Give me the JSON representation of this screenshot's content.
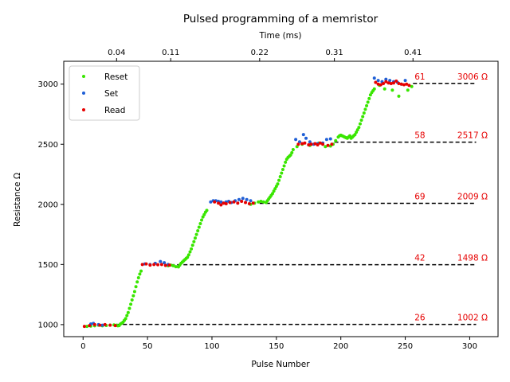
{
  "chart_data": {
    "type": "scatter",
    "title": "Pulsed programming of a memristor",
    "xlabel": "Pulse Number",
    "ylabel": "Resistance Ω",
    "x2label": "Time (ms)",
    "xlim": [
      -15,
      322
    ],
    "ylim": [
      900,
      3190
    ],
    "xticks": [
      0,
      50,
      100,
      150,
      200,
      250,
      300
    ],
    "yticks": [
      1000,
      1500,
      2000,
      2500,
      3000
    ],
    "x2ticks": [
      {
        "pulse": 26,
        "label": "0.04"
      },
      {
        "pulse": 68,
        "label": "0.11"
      },
      {
        "pulse": 137,
        "label": "0.22"
      },
      {
        "pulse": 195,
        "label": "0.31"
      },
      {
        "pulse": 256,
        "label": "0.41"
      }
    ],
    "grid": false,
    "legend_position": "top-left",
    "colors": {
      "reset": "#39e600",
      "set": "#1f5fd6",
      "read": "#e60000",
      "level_line": "#000000",
      "annotation": "#e60000"
    },
    "series": [
      {
        "name": "Reset",
        "color": "#39e600",
        "points": [
          [
            3,
            985
          ],
          [
            6,
            988
          ],
          [
            9,
            990
          ],
          [
            12,
            995
          ],
          [
            15,
            990
          ],
          [
            18,
            993
          ],
          [
            21,
            996
          ],
          [
            24,
            998
          ],
          [
            26,
            995
          ],
          [
            27,
            990
          ],
          [
            28,
            992
          ],
          [
            29,
            1005
          ],
          [
            30,
            1012
          ],
          [
            31,
            1020
          ],
          [
            32,
            1035
          ],
          [
            33,
            1050
          ],
          [
            34,
            1075
          ],
          [
            35,
            1100
          ],
          [
            36,
            1135
          ],
          [
            37,
            1170
          ],
          [
            38,
            1205
          ],
          [
            39,
            1240
          ],
          [
            40,
            1275
          ],
          [
            41,
            1315
          ],
          [
            42,
            1355
          ],
          [
            43,
            1390
          ],
          [
            44,
            1420
          ],
          [
            45,
            1445
          ],
          [
            66,
            1490
          ],
          [
            68,
            1495
          ],
          [
            70,
            1490
          ],
          [
            72,
            1482
          ],
          [
            74,
            1480
          ],
          [
            75,
            1495
          ],
          [
            76,
            1510
          ],
          [
            77,
            1520
          ],
          [
            78,
            1530
          ],
          [
            79,
            1540
          ],
          [
            80,
            1550
          ],
          [
            81,
            1560
          ],
          [
            82,
            1580
          ],
          [
            83,
            1605
          ],
          [
            84,
            1630
          ],
          [
            85,
            1660
          ],
          [
            86,
            1690
          ],
          [
            87,
            1720
          ],
          [
            88,
            1750
          ],
          [
            89,
            1780
          ],
          [
            90,
            1810
          ],
          [
            91,
            1840
          ],
          [
            92,
            1870
          ],
          [
            93,
            1895
          ],
          [
            94,
            1915
          ],
          [
            95,
            1935
          ],
          [
            96,
            1950
          ],
          [
            130,
            2000
          ],
          [
            133,
            2010
          ],
          [
            136,
            2020
          ],
          [
            138,
            2025
          ],
          [
            140,
            2020
          ],
          [
            142,
            2015
          ],
          [
            143,
            2030
          ],
          [
            144,
            2045
          ],
          [
            145,
            2060
          ],
          [
            146,
            2075
          ],
          [
            147,
            2090
          ],
          [
            148,
            2110
          ],
          [
            149,
            2130
          ],
          [
            150,
            2150
          ],
          [
            151,
            2170
          ],
          [
            152,
            2200
          ],
          [
            153,
            2230
          ],
          [
            154,
            2260
          ],
          [
            155,
            2290
          ],
          [
            156,
            2320
          ],
          [
            157,
            2350
          ],
          [
            158,
            2375
          ],
          [
            159,
            2390
          ],
          [
            160,
            2400
          ],
          [
            161,
            2410
          ],
          [
            162,
            2430
          ],
          [
            163,
            2455
          ],
          [
            166,
            2480
          ],
          [
            170,
            2500
          ],
          [
            176,
            2490
          ],
          [
            183,
            2510
          ],
          [
            188,
            2480
          ],
          [
            192,
            2485
          ],
          [
            194,
            2500
          ],
          [
            196,
            2530
          ],
          [
            198,
            2560
          ],
          [
            199,
            2570
          ],
          [
            200,
            2575
          ],
          [
            201,
            2570
          ],
          [
            202,
            2565
          ],
          [
            203,
            2560
          ],
          [
            204,
            2555
          ],
          [
            205,
            2550
          ],
          [
            206,
            2560
          ],
          [
            207,
            2570
          ],
          [
            208,
            2550
          ],
          [
            209,
            2560
          ],
          [
            210,
            2570
          ],
          [
            211,
            2580
          ],
          [
            212,
            2600
          ],
          [
            213,
            2620
          ],
          [
            214,
            2640
          ],
          [
            215,
            2670
          ],
          [
            216,
            2700
          ],
          [
            217,
            2730
          ],
          [
            218,
            2760
          ],
          [
            219,
            2790
          ],
          [
            220,
            2820
          ],
          [
            221,
            2850
          ],
          [
            222,
            2880
          ],
          [
            223,
            2910
          ],
          [
            224,
            2930
          ],
          [
            225,
            2945
          ],
          [
            226,
            2960
          ],
          [
            230,
            2990
          ],
          [
            234,
            2960
          ],
          [
            240,
            2950
          ],
          [
            245,
            2900
          ],
          [
            252,
            2950
          ],
          [
            255,
            2980
          ]
        ]
      },
      {
        "name": "Set",
        "color": "#1f5fd6",
        "points": [
          [
            6,
            1005
          ],
          [
            8,
            1010
          ],
          [
            12,
            1000
          ],
          [
            15,
            995
          ],
          [
            48,
            1505
          ],
          [
            52,
            1500
          ],
          [
            56,
            1510
          ],
          [
            60,
            1525
          ],
          [
            63,
            1515
          ],
          [
            66,
            1500
          ],
          [
            99,
            2020
          ],
          [
            101,
            2030
          ],
          [
            103,
            2030
          ],
          [
            105,
            2025
          ],
          [
            107,
            2020
          ],
          [
            109,
            2010
          ],
          [
            111,
            2020
          ],
          [
            113,
            2025
          ],
          [
            115,
            2015
          ],
          [
            118,
            2030
          ],
          [
            121,
            2040
          ],
          [
            124,
            2050
          ],
          [
            127,
            2040
          ],
          [
            130,
            2030
          ],
          [
            165,
            2540
          ],
          [
            168,
            2520
          ],
          [
            171,
            2580
          ],
          [
            173,
            2550
          ],
          [
            176,
            2520
          ],
          [
            179,
            2500
          ],
          [
            182,
            2505
          ],
          [
            186,
            2510
          ],
          [
            189,
            2540
          ],
          [
            192,
            2545
          ],
          [
            226,
            3050
          ],
          [
            229,
            3030
          ],
          [
            232,
            3020
          ],
          [
            235,
            3040
          ],
          [
            238,
            3030
          ],
          [
            241,
            3020
          ],
          [
            244,
            3015
          ],
          [
            247,
            3000
          ],
          [
            250,
            3030
          ]
        ]
      },
      {
        "name": "Read",
        "color": "#e60000",
        "points": [
          [
            1,
            985
          ],
          [
            5,
            992
          ],
          [
            9,
            1000
          ],
          [
            13,
            995
          ],
          [
            17,
            1000
          ],
          [
            21,
            995
          ],
          [
            25,
            992
          ],
          [
            46,
            1500
          ],
          [
            49,
            1505
          ],
          [
            52,
            1495
          ],
          [
            55,
            1500
          ],
          [
            58,
            1498
          ],
          [
            61,
            1500
          ],
          [
            64,
            1492
          ],
          [
            67,
            1495
          ],
          [
            102,
            2020
          ],
          [
            105,
            2010
          ],
          [
            107,
            1995
          ],
          [
            109,
            2010
          ],
          [
            111,
            2005
          ],
          [
            114,
            2015
          ],
          [
            117,
            2020
          ],
          [
            120,
            2010
          ],
          [
            123,
            2025
          ],
          [
            126,
            2015
          ],
          [
            129,
            2005
          ],
          [
            132,
            2010
          ],
          [
            167,
            2500
          ],
          [
            170,
            2505
          ],
          [
            172,
            2510
          ],
          [
            175,
            2495
          ],
          [
            177,
            2500
          ],
          [
            180,
            2505
          ],
          [
            182,
            2495
          ],
          [
            184,
            2510
          ],
          [
            186,
            2500
          ],
          [
            190,
            2490
          ],
          [
            193,
            2500
          ],
          [
            227,
            3015
          ],
          [
            229,
            3000
          ],
          [
            231,
            2995
          ],
          [
            233,
            3005
          ],
          [
            235,
            3020
          ],
          [
            237,
            3010
          ],
          [
            239,
            3005
          ],
          [
            241,
            3010
          ],
          [
            243,
            3025
          ],
          [
            245,
            3005
          ],
          [
            247,
            3000
          ],
          [
            249,
            2995
          ],
          [
            251,
            3000
          ],
          [
            253,
            2990
          ]
        ]
      }
    ],
    "levels": [
      {
        "value": 1002,
        "start": 26,
        "end": 305,
        "count": "26",
        "label": "1002 Ω"
      },
      {
        "value": 1498,
        "start": 68,
        "end": 305,
        "count": "42",
        "label": "1498 Ω"
      },
      {
        "value": 2009,
        "start": 137,
        "end": 305,
        "count": "69",
        "label": "2009 Ω"
      },
      {
        "value": 2517,
        "start": 195,
        "end": 305,
        "count": "58",
        "label": "2517 Ω"
      },
      {
        "value": 3006,
        "start": 256,
        "end": 305,
        "count": "61",
        "label": "3006 Ω"
      }
    ]
  }
}
